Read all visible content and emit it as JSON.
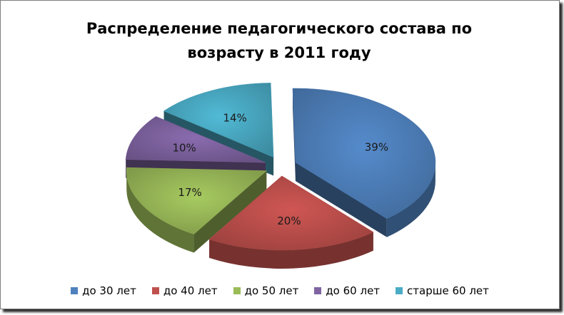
{
  "chart_data": {
    "type": "pie",
    "title": "Распределение педагогического состава по возрасту в 2011 году",
    "categories": [
      "до 30 лет",
      "до 40 лет",
      "до 50 лет",
      "до 60 лет",
      "старше 60 лет"
    ],
    "values": [
      39,
      20,
      17,
      10,
      14
    ],
    "labels": [
      "39%",
      "20%",
      "17%",
      "10%",
      "14%"
    ],
    "colors": [
      "#4f81bd",
      "#c0504d",
      "#9bbb59",
      "#8064a2",
      "#4bacc6"
    ],
    "legend_position": "bottom",
    "style": "3d-exploded"
  }
}
